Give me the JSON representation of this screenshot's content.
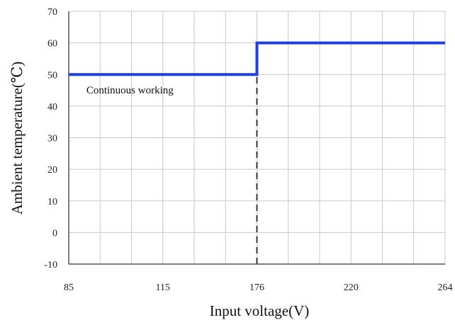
{
  "chart_data": {
    "type": "line",
    "xlabel": "Input voltage(V)",
    "ylabel": "Ambient temperature(℃)",
    "x_ticks": [
      85,
      115,
      176,
      220,
      264
    ],
    "y_ticks": [
      -10,
      0,
      10,
      20,
      30,
      40,
      50,
      60,
      70
    ],
    "xlim": [
      85,
      264
    ],
    "ylim": [
      -10,
      70
    ],
    "grid": true,
    "series": [
      {
        "color": "#1f3fe0",
        "points": [
          [
            85,
            50
          ],
          [
            176,
            50
          ],
          [
            176,
            60
          ],
          [
            264,
            60
          ]
        ]
      }
    ],
    "reference_lines": [
      {
        "orientation": "vertical",
        "x": 176,
        "from_y": -10,
        "to_y": 50,
        "style": "dashed",
        "color": "#333333"
      }
    ],
    "annotations": [
      {
        "text": "Continuous working",
        "x": 87,
        "y": 44
      }
    ]
  }
}
